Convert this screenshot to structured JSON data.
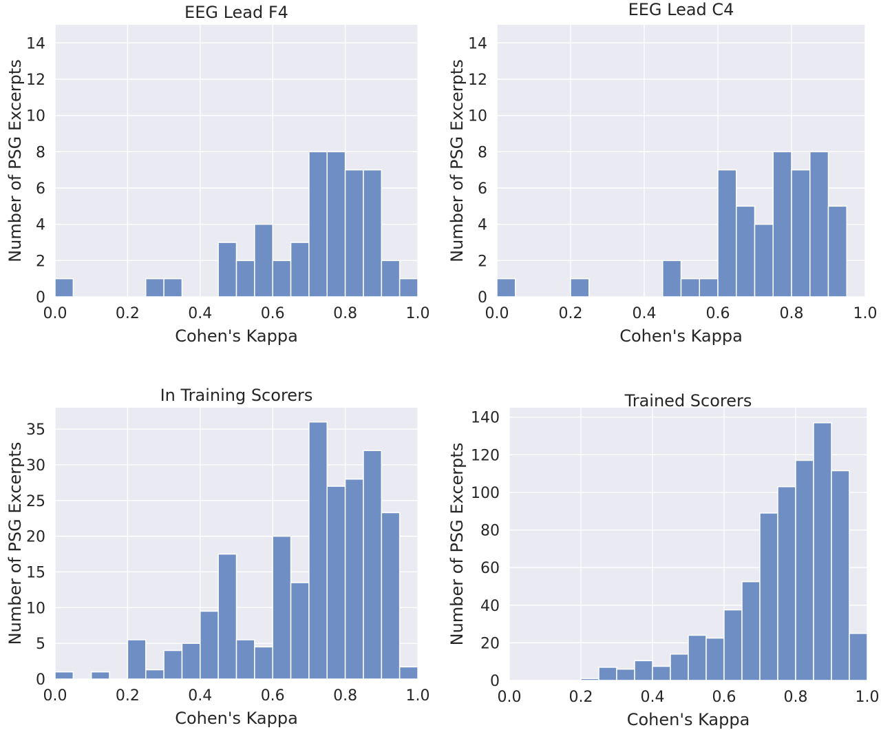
{
  "chart_data": [
    {
      "type": "bar",
      "title": "EEG Lead F4",
      "xlabel": "Cohen's Kappa",
      "ylabel": "Number of PSG Excerpts",
      "xlim": [
        0,
        1
      ],
      "ylim": [
        0,
        15
      ],
      "xticks": [
        "0.0",
        "0.2",
        "0.4",
        "0.6",
        "0.8",
        "1.0"
      ],
      "yticks": [
        "0",
        "2",
        "4",
        "6",
        "8",
        "10",
        "12",
        "14"
      ],
      "bin_width": 0.05,
      "bin_starts": [
        0.0,
        0.05,
        0.1,
        0.15,
        0.2,
        0.25,
        0.3,
        0.35,
        0.4,
        0.45,
        0.5,
        0.55,
        0.6,
        0.65,
        0.7,
        0.75,
        0.8,
        0.85,
        0.9,
        0.95
      ],
      "values": [
        1,
        0,
        0,
        0,
        0,
        1,
        1,
        0,
        0,
        3,
        2,
        4,
        2,
        3,
        8,
        8,
        7,
        7,
        2,
        1
      ],
      "grid": true
    },
    {
      "type": "bar",
      "title": "EEG Lead C4",
      "xlabel": "Cohen's Kappa",
      "ylabel": "Number of PSG Excerpts",
      "xlim": [
        0,
        1
      ],
      "ylim": [
        0,
        15
      ],
      "xticks": [
        "0.0",
        "0.2",
        "0.4",
        "0.6",
        "0.8",
        "1.0"
      ],
      "yticks": [
        "0",
        "2",
        "4",
        "6",
        "8",
        "10",
        "12",
        "14"
      ],
      "bin_width": 0.05,
      "bin_starts": [
        0.0,
        0.05,
        0.1,
        0.15,
        0.2,
        0.25,
        0.3,
        0.35,
        0.4,
        0.45,
        0.5,
        0.55,
        0.6,
        0.65,
        0.7,
        0.75,
        0.8,
        0.85,
        0.9,
        0.95
      ],
      "values": [
        1,
        0,
        0,
        0,
        1,
        0,
        0,
        0,
        0,
        2,
        1,
        1,
        7,
        5,
        4,
        8,
        7,
        8,
        5,
        0
      ],
      "grid": true
    },
    {
      "type": "bar",
      "title": "In Training Scorers",
      "xlabel": "Cohen's Kappa",
      "ylabel": "Number of PSG Excerpts",
      "xlim": [
        0,
        1
      ],
      "ylim": [
        0,
        38
      ],
      "xticks": [
        "0.0",
        "0.2",
        "0.4",
        "0.6",
        "0.8",
        "1.0"
      ],
      "yticks": [
        "0",
        "5",
        "10",
        "15",
        "20",
        "25",
        "30",
        "35"
      ],
      "bin_width": 0.05,
      "bin_starts": [
        0.0,
        0.05,
        0.1,
        0.15,
        0.2,
        0.25,
        0.3,
        0.35,
        0.4,
        0.45,
        0.5,
        0.55,
        0.6,
        0.65,
        0.7,
        0.75,
        0.8,
        0.85,
        0.9,
        0.95
      ],
      "values": [
        1,
        0,
        1,
        0,
        5.5,
        1.3,
        4,
        5,
        9.5,
        17.5,
        5.5,
        4.5,
        20,
        13.5,
        36,
        27,
        28,
        32,
        23.3,
        1.7
      ],
      "grid": true
    },
    {
      "type": "bar",
      "title": "Trained Scorers",
      "xlabel": "Cohen's Kappa",
      "ylabel": "Number of PSG Excerpts",
      "xlim": [
        0,
        1
      ],
      "ylim": [
        0,
        145
      ],
      "xticks": [
        "0.0",
        "0.2",
        "0.4",
        "0.6",
        "0.8",
        "1.0"
      ],
      "yticks": [
        "0",
        "20",
        "40",
        "60",
        "80",
        "100",
        "120",
        "140"
      ],
      "bin_width": 0.05,
      "bin_starts": [
        0.0,
        0.05,
        0.1,
        0.15,
        0.2,
        0.25,
        0.3,
        0.35,
        0.4,
        0.45,
        0.5,
        0.55,
        0.6,
        0.65,
        0.7,
        0.75,
        0.8,
        0.85,
        0.9,
        0.95
      ],
      "values": [
        0,
        0,
        0,
        0,
        1,
        7,
        6,
        10.5,
        7.5,
        14,
        24,
        22.5,
        37.5,
        52.5,
        89,
        103,
        117,
        137,
        111.5,
        25
      ],
      "grid": true
    }
  ]
}
